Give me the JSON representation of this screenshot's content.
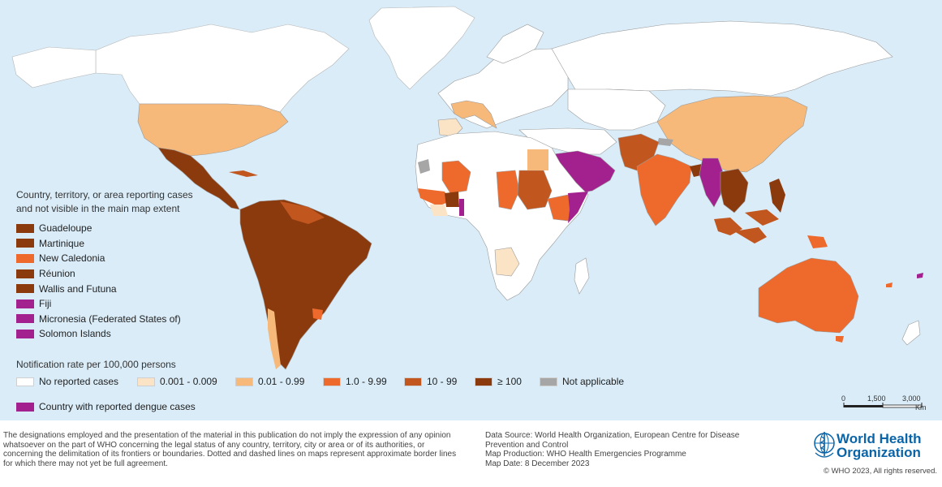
{
  "legend": {
    "nonvisible_heading": "Country, territory, or area reporting cases\nand not visible in the main map extent",
    "nonvisible_items": [
      {
        "label": "Guadeloupe",
        "color": "#8b3a0e"
      },
      {
        "label": "Martinique",
        "color": "#8b3a0e"
      },
      {
        "label": "New Caledonia",
        "color": "#ee6a2c"
      },
      {
        "label": "Réunion",
        "color": "#8b3a0e"
      },
      {
        "label": "Wallis and Futuna",
        "color": "#8b3a0e"
      },
      {
        "label": "Fiji",
        "color": "#a3218e"
      },
      {
        "label": "Micronesia (Federated States of)",
        "color": "#a3218e"
      },
      {
        "label": "Solomon Islands",
        "color": "#a3218e"
      }
    ],
    "rate_heading": "Notification rate per 100,000 persons",
    "rate_classes": [
      {
        "label": "No reported cases",
        "color": "#ffffff"
      },
      {
        "label": "0.001 - 0.009",
        "color": "#fbe3c6"
      },
      {
        "label": "0.01 - 0.99",
        "color": "#f7b97a"
      },
      {
        "label": "1.0 - 9.99",
        "color": "#ee6a2c"
      },
      {
        "label": "10 - 99",
        "color": "#c2561f"
      },
      {
        "label": "≥ 100",
        "color": "#8b3a0e"
      },
      {
        "label": "Not applicable",
        "color": "#a6a6a6"
      }
    ],
    "dengue_label": "Country with reported dengue cases",
    "dengue_color": "#a3218e"
  },
  "scale": {
    "labels": [
      "0",
      "1,500",
      "3,000"
    ],
    "unit": "Km"
  },
  "footer": {
    "disclaimer": "The designations employed and the presentation of the material in this publication do not imply the expression of any opinion whatsoever on the part of WHO concerning the legal status of any country, territory, city or area or of its authorities, or concerning the delimitation of its frontiers or boundaries. Dotted and dashed lines on maps represent approximate border lines for which there may not yet be full agreement.",
    "data_source": "Data Source: World Health Organization, European Centre for Disease\nPrevention and Control",
    "production": "Map Production: WHO Health Emergencies Programme",
    "map_date": "Map Date:  8 December 2023",
    "org_name": "World Health\nOrganization",
    "copyright": "© WHO 2023, All rights reserved."
  },
  "colors": {
    "ocean": "#d9ecf8",
    "border": "#9a9a9a",
    "no_cases": "#ffffff"
  }
}
